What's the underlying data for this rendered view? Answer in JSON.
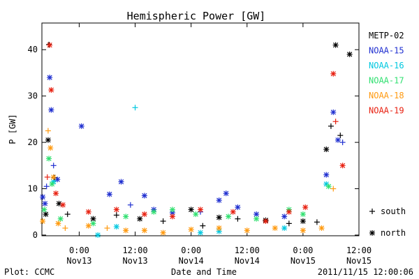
{
  "chart_data": {
    "type": "scatter",
    "title": "Hemispheric Power [GW]",
    "ylabel": "P [GW]",
    "xlabel": "Date and Time",
    "ylim": [
      0,
      45
    ],
    "yticks": [
      0,
      10,
      20,
      30,
      40
    ],
    "xlim": [
      "2011-11-12T16:00",
      "2011-11-15T12:00"
    ],
    "xticks": [
      {
        "at": "2011-11-13T00:00",
        "line1": "0:00",
        "line2": "Nov13"
      },
      {
        "at": "2011-11-13T12:00",
        "line1": "12:00",
        "line2": "Nov13"
      },
      {
        "at": "2011-11-14T00:00",
        "line1": "0:00",
        "line2": "Nov14"
      },
      {
        "at": "2011-11-14T12:00",
        "line1": "12:00",
        "line2": "Nov14"
      },
      {
        "at": "2011-11-15T00:00",
        "line1": "0:00",
        "line2": "Nov15"
      },
      {
        "at": "2011-11-15T12:00",
        "line1": "12:00",
        "line2": "Nov15"
      }
    ],
    "legend": {
      "placement": "right",
      "entries": [
        {
          "name": "METP-02",
          "color": "#000000"
        },
        {
          "name": "NOAA-15",
          "color": "#1f2fd0"
        },
        {
          "name": "NOAA-16",
          "color": "#00c8e0"
        },
        {
          "name": "NOAA-17",
          "color": "#30e070"
        },
        {
          "name": "NOAA-18",
          "color": "#ff9a10"
        },
        {
          "name": "NOAA-19",
          "color": "#e82010"
        }
      ],
      "markers": [
        {
          "symbol": "+",
          "label": "south"
        },
        {
          "symbol": "*",
          "label": "north"
        }
      ]
    },
    "series": [
      {
        "name": "METP-02",
        "color": "#000000",
        "points": [
          [
            "2011-11-12T17:30",
            41.1,
            "+"
          ],
          [
            "2011-11-12T16:50",
            4.5,
            "*"
          ],
          [
            "2011-11-12T17:20",
            20.5,
            "*"
          ],
          [
            "2011-11-12T18:40",
            12.4,
            "+"
          ],
          [
            "2011-11-12T19:40",
            6.8,
            "*"
          ],
          [
            "2011-11-12T21:30",
            4.5,
            "+"
          ],
          [
            "2011-11-13T03:00",
            3.5,
            "*"
          ],
          [
            "2011-11-13T08:00",
            4.3,
            "+"
          ],
          [
            "2011-11-13T13:00",
            3.5,
            "*"
          ],
          [
            "2011-11-13T18:00",
            3.0,
            "+"
          ],
          [
            "2011-11-14T00:00",
            5.5,
            "*"
          ],
          [
            "2011-11-14T02:30",
            2.0,
            "+"
          ],
          [
            "2011-11-14T06:00",
            3.8,
            "*"
          ],
          [
            "2011-11-14T10:00",
            3.5,
            "+"
          ],
          [
            "2011-11-14T16:00",
            3.2,
            "*"
          ],
          [
            "2011-11-14T21:00",
            2.5,
            "+"
          ],
          [
            "2011-11-15T00:00",
            3.0,
            "*"
          ],
          [
            "2011-11-15T03:00",
            2.8,
            "+"
          ],
          [
            "2011-11-15T05:00",
            18.5,
            "*"
          ],
          [
            "2011-11-15T06:00",
            23.5,
            "+"
          ],
          [
            "2011-11-15T07:00",
            41.0,
            "*"
          ],
          [
            "2011-11-15T08:00",
            21.5,
            "+"
          ],
          [
            "2011-11-15T10:00",
            39.0,
            "*"
          ]
        ]
      },
      {
        "name": "NOAA-15",
        "color": "#1f2fd0",
        "points": [
          [
            "2011-11-12T16:10",
            8.2,
            "*"
          ],
          [
            "2011-11-12T16:40",
            6.8,
            "*"
          ],
          [
            "2011-11-12T17:00",
            10.5,
            "+"
          ],
          [
            "2011-11-12T17:40",
            34.0,
            "*"
          ],
          [
            "2011-11-12T18:00",
            27.0,
            "*"
          ],
          [
            "2011-11-12T18:30",
            15.0,
            "+"
          ],
          [
            "2011-11-12T19:20",
            12.0,
            "*"
          ],
          [
            "2011-11-13T00:30",
            23.5,
            "*"
          ],
          [
            "2011-11-13T06:30",
            8.8,
            "*"
          ],
          [
            "2011-11-13T09:00",
            11.5,
            "*"
          ],
          [
            "2011-11-13T11:00",
            6.5,
            "+"
          ],
          [
            "2011-11-13T14:00",
            8.5,
            "*"
          ],
          [
            "2011-11-13T16:00",
            5.5,
            "*"
          ],
          [
            "2011-11-13T20:00",
            4.8,
            "*"
          ],
          [
            "2011-11-14T02:00",
            5.0,
            "+"
          ],
          [
            "2011-11-14T06:00",
            7.5,
            "*"
          ],
          [
            "2011-11-14T07:30",
            9.0,
            "*"
          ],
          [
            "2011-11-14T10:00",
            6.0,
            "*"
          ],
          [
            "2011-11-14T14:00",
            4.5,
            "*"
          ],
          [
            "2011-11-14T20:00",
            4.0,
            "*"
          ],
          [
            "2011-11-15T05:00",
            13.0,
            "*"
          ],
          [
            "2011-11-15T06:30",
            26.5,
            "*"
          ],
          [
            "2011-11-15T07:30",
            20.5,
            "*"
          ],
          [
            "2011-11-15T08:30",
            20.0,
            "+"
          ]
        ]
      },
      {
        "name": "NOAA-16",
        "color": "#00c8e0",
        "points": [
          [
            "2011-11-12T18:30",
            11.5,
            "*"
          ],
          [
            "2011-11-13T12:00",
            27.5,
            "+"
          ],
          [
            "2011-11-13T08:00",
            1.8,
            "*"
          ],
          [
            "2011-11-13T04:00",
            0.0,
            "*"
          ],
          [
            "2011-11-14T02:00",
            0.5,
            "*"
          ],
          [
            "2011-11-14T06:00",
            0.8,
            "*"
          ],
          [
            "2011-11-14T20:00",
            1.5,
            "*"
          ],
          [
            "2011-11-15T05:00",
            11.0,
            "*"
          ]
        ]
      },
      {
        "name": "NOAA-17",
        "color": "#30e070",
        "points": [
          [
            "2011-11-12T16:30",
            5.5,
            "*"
          ],
          [
            "2011-11-12T17:30",
            16.5,
            "*"
          ],
          [
            "2011-11-12T18:10",
            11.0,
            "*"
          ],
          [
            "2011-11-12T20:00",
            3.5,
            "*"
          ],
          [
            "2011-11-13T03:00",
            2.5,
            "*"
          ],
          [
            "2011-11-13T10:00",
            4.0,
            "*"
          ],
          [
            "2011-11-13T16:00",
            5.0,
            "*"
          ],
          [
            "2011-11-13T20:00",
            5.5,
            "*"
          ],
          [
            "2011-11-14T01:00",
            4.5,
            "*"
          ],
          [
            "2011-11-14T08:00",
            4.0,
            "*"
          ],
          [
            "2011-11-14T14:00",
            3.5,
            "*"
          ],
          [
            "2011-11-14T21:00",
            5.5,
            "*"
          ],
          [
            "2011-11-15T00:00",
            4.5,
            "*"
          ],
          [
            "2011-11-15T05:30",
            10.5,
            "*"
          ]
        ]
      },
      {
        "name": "NOAA-18",
        "color": "#ff9a10",
        "points": [
          [
            "2011-11-12T16:10",
            3.0,
            "*"
          ],
          [
            "2011-11-12T17:20",
            22.5,
            "+"
          ],
          [
            "2011-11-12T17:50",
            18.8,
            "*"
          ],
          [
            "2011-11-12T18:30",
            12.5,
            "*"
          ],
          [
            "2011-11-12T19:30",
            2.5,
            "*"
          ],
          [
            "2011-11-12T21:00",
            1.5,
            "+"
          ],
          [
            "2011-11-13T02:00",
            2.0,
            "*"
          ],
          [
            "2011-11-13T06:00",
            1.5,
            "+"
          ],
          [
            "2011-11-13T10:00",
            1.0,
            "*"
          ],
          [
            "2011-11-13T14:00",
            1.0,
            "*"
          ],
          [
            "2011-11-13T18:00",
            0.5,
            "*"
          ],
          [
            "2011-11-14T00:00",
            1.2,
            "*"
          ],
          [
            "2011-11-14T06:00",
            1.5,
            "*"
          ],
          [
            "2011-11-14T12:00",
            1.0,
            "*"
          ],
          [
            "2011-11-14T18:00",
            1.5,
            "*"
          ],
          [
            "2011-11-15T00:00",
            1.0,
            "*"
          ],
          [
            "2011-11-15T04:00",
            1.5,
            "*"
          ],
          [
            "2011-11-15T06:30",
            10.0,
            "+"
          ]
        ]
      },
      {
        "name": "NOAA-19",
        "color": "#e82010",
        "points": [
          [
            "2011-11-12T17:10",
            12.5,
            "+"
          ],
          [
            "2011-11-12T17:40",
            41.0,
            "*"
          ],
          [
            "2011-11-12T18:00",
            31.3,
            "*"
          ],
          [
            "2011-11-12T19:00",
            9.0,
            "*"
          ],
          [
            "2011-11-12T20:30",
            6.5,
            "*"
          ],
          [
            "2011-11-13T02:00",
            5.0,
            "*"
          ],
          [
            "2011-11-13T08:00",
            5.5,
            "*"
          ],
          [
            "2011-11-13T14:00",
            4.5,
            "*"
          ],
          [
            "2011-11-13T20:00",
            4.0,
            "*"
          ],
          [
            "2011-11-14T02:00",
            5.5,
            "*"
          ],
          [
            "2011-11-14T09:00",
            5.0,
            "*"
          ],
          [
            "2011-11-14T16:00",
            3.0,
            "*"
          ],
          [
            "2011-11-14T21:00",
            5.0,
            "*"
          ],
          [
            "2011-11-15T00:30",
            6.0,
            "*"
          ],
          [
            "2011-11-15T06:30",
            34.8,
            "*"
          ],
          [
            "2011-11-15T07:00",
            24.5,
            "+"
          ],
          [
            "2011-11-15T08:30",
            15.0,
            "*"
          ]
        ]
      }
    ]
  },
  "footer": {
    "left": "Plot: CCMC",
    "center": "Date and Time",
    "right": "2011/11/15 12:00:06"
  }
}
